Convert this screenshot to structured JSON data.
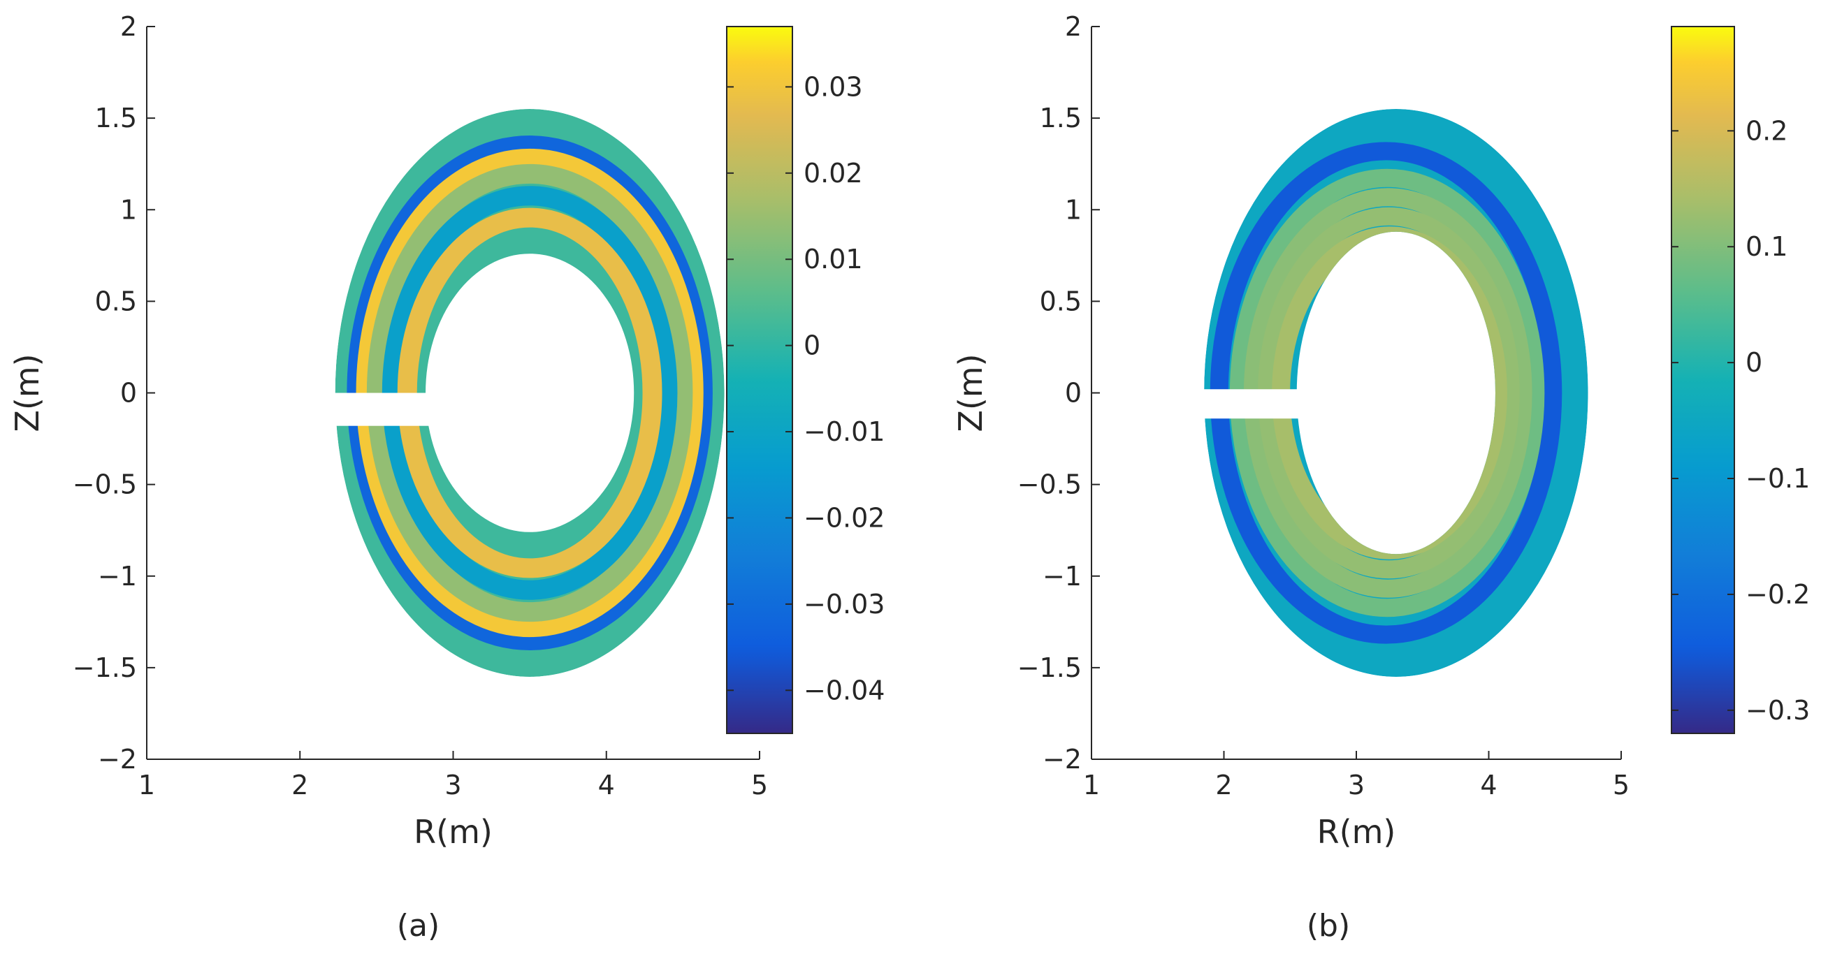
{
  "chart_data": [
    {
      "type": "heatmap",
      "panel_label": "(a)",
      "xlabel": "R(m)",
      "ylabel": "Z(m)",
      "xlim": [
        1,
        5
      ],
      "ylim": [
        -2,
        2
      ],
      "x_ticks": [
        "1",
        "2",
        "3",
        "4",
        "5"
      ],
      "y_ticks": [
        "−2",
        "−1.5",
        "−1",
        "−0.5",
        "0",
        "0.5",
        "1",
        "1.5",
        "2"
      ],
      "colorbar": {
        "colormap": "parula",
        "range": [
          -0.045,
          0.037
        ],
        "ticks": [
          -0.04,
          -0.03,
          -0.02,
          -0.01,
          0,
          0.01,
          0.02,
          0.03
        ],
        "tick_labels": [
          "−0.04",
          "−0.03",
          "−0.02",
          "−0.01",
          "0",
          "0.01",
          "0.02",
          "0.03"
        ]
      },
      "grid": false,
      "field": {
        "center_R": 3.5,
        "center_Z": 0,
        "outer_radius_R": 1.27,
        "outer_radius_Z": 1.55,
        "inner_radius_R": 0.68,
        "inner_radius_Z": 0.76,
        "gap_Z": [
          -0.18,
          0.0
        ],
        "background_value": 0.002,
        "bands": [
          {
            "minor_radius_R": 0.8,
            "value": 0.028
          },
          {
            "minor_radius_R": 0.9,
            "value": -0.012
          },
          {
            "minor_radius_R": 1.0,
            "value": 0.014
          },
          {
            "minor_radius_R": 1.07,
            "value": 0.031
          },
          {
            "minor_radius_R": 1.13,
            "value": -0.032
          }
        ]
      }
    },
    {
      "type": "heatmap",
      "panel_label": "(b)",
      "xlabel": "R(m)",
      "ylabel": "Z(m)",
      "xlim": [
        1,
        5
      ],
      "ylim": [
        -2,
        2
      ],
      "x_ticks": [
        "1",
        "2",
        "3",
        "4",
        "5"
      ],
      "y_ticks": [
        "−2",
        "−1.5",
        "−1",
        "−0.5",
        "0",
        "0.5",
        "1",
        "1.5",
        "2"
      ],
      "colorbar": {
        "colormap": "parula",
        "range": [
          -0.32,
          0.29
        ],
        "ticks": [
          -0.3,
          -0.2,
          -0.1,
          0,
          0.1,
          0.2
        ],
        "tick_labels": [
          "−0.3",
          "−0.2",
          "−0.1",
          "0",
          "0.1",
          "0.2"
        ]
      },
      "grid": false,
      "field": {
        "center_R": 3.3,
        "center_Z": 0,
        "outer_radius_R": 1.45,
        "outer_radius_Z": 1.55,
        "inner_radius_R": 0.75,
        "inner_radius_Z": 0.88,
        "gap_Z": [
          -0.14,
          0.02
        ],
        "background_value": -0.05,
        "bands": [
          {
            "minor_radius_R": 0.82,
            "value": 0.14
          },
          {
            "minor_radius_R": 0.92,
            "value": 0.12
          },
          {
            "minor_radius_R": 1.02,
            "value": 0.11
          },
          {
            "minor_radius_R": 1.12,
            "value": 0.08
          },
          {
            "minor_radius_R": 1.26,
            "value": -0.25
          }
        ]
      }
    }
  ]
}
